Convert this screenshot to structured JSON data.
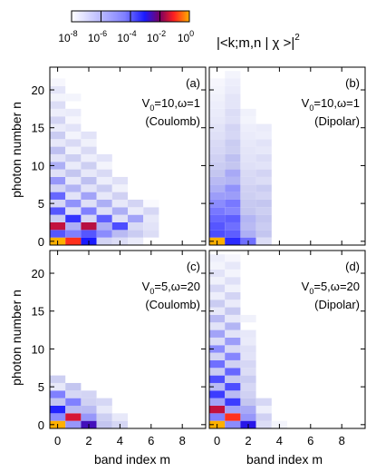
{
  "figure": {
    "colorbar": {
      "label": "|<k;m,n | χ >|",
      "label_sup": "2",
      "ticks": [
        {
          "base": "10",
          "exp": "-8"
        },
        {
          "base": "10",
          "exp": "-6"
        },
        {
          "base": "10",
          "exp": "-4"
        },
        {
          "base": "10",
          "exp": "-2"
        },
        {
          "base": "10",
          "exp": "0"
        }
      ],
      "log_range": [
        -8,
        0
      ],
      "colors": [
        "#ffffff",
        "#1a1aff",
        "#7a0060",
        "#ff2020",
        "#ffb000"
      ]
    },
    "xlabel": "band index m",
    "ylabel": "photon number n"
  },
  "chart_data": [
    {
      "type": "heatmap",
      "panel": "(a)",
      "param_base": "V",
      "param_sub": "0",
      "param_rest": "=10,ω=1",
      "potential": "(Coulomb)",
      "xlabel": "band index m",
      "ylabel": "photon number n",
      "xlim": [
        -0.5,
        9.5
      ],
      "ylim": [
        -0.5,
        23
      ],
      "xticks": [
        0,
        2,
        4,
        6,
        8
      ],
      "yticks": [
        0,
        5,
        10,
        15,
        20
      ],
      "value_scale": "log10",
      "cells": [
        [
          0,
          0,
          0.0
        ],
        [
          1,
          0,
          -0.8
        ],
        [
          2,
          0,
          -3.6
        ],
        [
          3,
          0,
          -6.5
        ],
        [
          4,
          0,
          -6.8
        ],
        [
          5,
          0,
          -7.3
        ],
        [
          0,
          1,
          -4.3
        ],
        [
          1,
          1,
          -4.8
        ],
        [
          2,
          1,
          -4.3
        ],
        [
          3,
          1,
          -5.0
        ],
        [
          4,
          1,
          -5.8
        ],
        [
          5,
          1,
          -6.2
        ],
        [
          6,
          1,
          -6.8
        ],
        [
          0,
          2,
          -1.5
        ],
        [
          1,
          2,
          -5.6
        ],
        [
          2,
          2,
          -1.6
        ],
        [
          3,
          2,
          -5.6
        ],
        [
          4,
          2,
          -4.2
        ],
        [
          5,
          2,
          -6.7
        ],
        [
          6,
          2,
          -7.0
        ],
        [
          0,
          3,
          -6.2
        ],
        [
          1,
          3,
          -3.9
        ],
        [
          2,
          3,
          -6.6
        ],
        [
          3,
          3,
          -4.4
        ],
        [
          4,
          3,
          -6.9
        ],
        [
          5,
          3,
          -5.4
        ],
        [
          6,
          3,
          -7.2
        ],
        [
          0,
          4,
          -4.3
        ],
        [
          1,
          4,
          -6.8
        ],
        [
          2,
          4,
          -4.8
        ],
        [
          3,
          4,
          -6.9
        ],
        [
          4,
          4,
          -5.6
        ],
        [
          5,
          4,
          -7.3
        ],
        [
          6,
          4,
          -6.6
        ],
        [
          0,
          5,
          -6.6
        ],
        [
          1,
          5,
          -5.1
        ],
        [
          2,
          5,
          -6.9
        ],
        [
          3,
          5,
          -5.6
        ],
        [
          4,
          5,
          -7.2
        ],
        [
          5,
          5,
          -6.5
        ],
        [
          6,
          5,
          -7.8
        ],
        [
          0,
          6,
          -4.5
        ],
        [
          1,
          6,
          -7.0
        ],
        [
          2,
          6,
          -5.4
        ],
        [
          3,
          6,
          -7.2
        ],
        [
          4,
          6,
          -6.4
        ],
        [
          0,
          7,
          -6.5
        ],
        [
          1,
          7,
          -5.7
        ],
        [
          2,
          7,
          -7.0
        ],
        [
          3,
          7,
          -6.2
        ],
        [
          4,
          7,
          -7.5
        ],
        [
          0,
          8,
          -5.2
        ],
        [
          1,
          8,
          -7.2
        ],
        [
          2,
          8,
          -5.9
        ],
        [
          3,
          8,
          -7.4
        ],
        [
          4,
          8,
          -6.9
        ],
        [
          0,
          9,
          -6.9
        ],
        [
          1,
          9,
          -6.0
        ],
        [
          2,
          9,
          -7.2
        ],
        [
          3,
          9,
          -6.7
        ],
        [
          0,
          10,
          -5.6
        ],
        [
          1,
          10,
          -7.3
        ],
        [
          2,
          10,
          -6.3
        ],
        [
          3,
          10,
          -7.6
        ],
        [
          0,
          11,
          -7.0
        ],
        [
          1,
          11,
          -6.3
        ],
        [
          2,
          11,
          -7.4
        ],
        [
          3,
          11,
          -7.0
        ],
        [
          0,
          12,
          -5.9
        ],
        [
          1,
          12,
          -7.5
        ],
        [
          2,
          12,
          -6.7
        ],
        [
          0,
          13,
          -7.2
        ],
        [
          1,
          13,
          -6.7
        ],
        [
          2,
          13,
          -7.5
        ],
        [
          0,
          14,
          -6.2
        ],
        [
          1,
          14,
          -7.6
        ],
        [
          2,
          14,
          -7.0
        ],
        [
          0,
          15,
          -7.3
        ],
        [
          1,
          15,
          -7.0
        ],
        [
          0,
          16,
          -6.5
        ],
        [
          1,
          16,
          -7.7
        ],
        [
          0,
          17,
          -7.4
        ],
        [
          1,
          17,
          -7.3
        ],
        [
          0,
          18,
          -6.8
        ],
        [
          0,
          19,
          -7.6
        ],
        [
          1,
          19,
          -7.6
        ],
        [
          0,
          20,
          -7.1
        ],
        [
          0,
          21,
          -7.7
        ]
      ]
    },
    {
      "type": "heatmap",
      "panel": "(b)",
      "param_base": "V",
      "param_sub": "0",
      "param_rest": "=10,ω=1",
      "potential": "(Dipolar)",
      "xlabel": "band index m",
      "ylabel": "photon number n",
      "xlim": [
        -0.5,
        9.5
      ],
      "ylim": [
        -0.5,
        23
      ],
      "xticks": [
        0,
        2,
        4,
        6,
        8
      ],
      "yticks": [
        0,
        5,
        10,
        15,
        20
      ],
      "value_scale": "log10",
      "cells": [
        [
          0,
          0,
          0.0
        ],
        [
          1,
          0,
          -3.8
        ],
        [
          2,
          0,
          -4.6
        ],
        [
          3,
          0,
          -6.8
        ],
        [
          0,
          1,
          -4.2
        ],
        [
          1,
          1,
          -4.4
        ],
        [
          2,
          1,
          -5.6
        ],
        [
          3,
          1,
          -6.0
        ],
        [
          0,
          2,
          -4.3
        ],
        [
          1,
          2,
          -4.6
        ],
        [
          2,
          2,
          -5.8
        ],
        [
          3,
          2,
          -6.2
        ],
        [
          0,
          3,
          -4.5
        ],
        [
          1,
          3,
          -4.4
        ],
        [
          2,
          3,
          -5.7
        ],
        [
          3,
          3,
          -6.0
        ],
        [
          0,
          4,
          -4.7
        ],
        [
          1,
          4,
          -4.9
        ],
        [
          2,
          4,
          -6.0
        ],
        [
          3,
          4,
          -6.3
        ],
        [
          0,
          5,
          -5.0
        ],
        [
          1,
          5,
          -4.7
        ],
        [
          2,
          5,
          -6.1
        ],
        [
          3,
          5,
          -6.0
        ],
        [
          0,
          6,
          -5.3
        ],
        [
          1,
          6,
          -5.3
        ],
        [
          2,
          6,
          -6.3
        ],
        [
          3,
          6,
          -6.5
        ],
        [
          0,
          7,
          -5.6
        ],
        [
          1,
          7,
          -5.1
        ],
        [
          2,
          7,
          -6.4
        ],
        [
          3,
          7,
          -6.2
        ],
        [
          0,
          8,
          -5.8
        ],
        [
          1,
          8,
          -5.7
        ],
        [
          2,
          8,
          -6.6
        ],
        [
          3,
          8,
          -6.8
        ],
        [
          0,
          9,
          -6.0
        ],
        [
          1,
          9,
          -5.5
        ],
        [
          2,
          9,
          -6.7
        ],
        [
          3,
          9,
          -6.5
        ],
        [
          0,
          10,
          -6.2
        ],
        [
          1,
          10,
          -6.0
        ],
        [
          2,
          10,
          -6.9
        ],
        [
          3,
          10,
          -7.0
        ],
        [
          0,
          11,
          -6.4
        ],
        [
          1,
          11,
          -5.9
        ],
        [
          2,
          11,
          -7.0
        ],
        [
          3,
          11,
          -6.8
        ],
        [
          0,
          12,
          -6.6
        ],
        [
          1,
          12,
          -6.3
        ],
        [
          2,
          12,
          -7.1
        ],
        [
          3,
          12,
          -7.2
        ],
        [
          0,
          13,
          -6.7
        ],
        [
          1,
          13,
          -6.2
        ],
        [
          2,
          13,
          -7.2
        ],
        [
          3,
          13,
          -7.0
        ],
        [
          0,
          14,
          -6.9
        ],
        [
          1,
          14,
          -6.6
        ],
        [
          2,
          14,
          -7.3
        ],
        [
          3,
          14,
          -7.4
        ],
        [
          0,
          15,
          -7.0
        ],
        [
          1,
          15,
          -6.5
        ],
        [
          2,
          15,
          -7.4
        ],
        [
          3,
          15,
          -7.3
        ],
        [
          0,
          16,
          -7.2
        ],
        [
          1,
          16,
          -6.9
        ],
        [
          2,
          16,
          -7.6
        ],
        [
          0,
          17,
          -7.3
        ],
        [
          1,
          17,
          -6.8
        ],
        [
          2,
          17,
          -7.5
        ],
        [
          0,
          18,
          -7.4
        ],
        [
          1,
          18,
          -7.1
        ],
        [
          0,
          19,
          -7.5
        ],
        [
          1,
          19,
          -7.1
        ],
        [
          0,
          20,
          -7.6
        ],
        [
          1,
          20,
          -7.3
        ],
        [
          0,
          21,
          -7.7
        ],
        [
          1,
          21,
          -7.4
        ],
        [
          1,
          22,
          -7.6
        ]
      ]
    },
    {
      "type": "heatmap",
      "panel": "(c)",
      "param_base": "V",
      "param_sub": "0",
      "param_rest": "=5,ω=20",
      "potential": "(Coulomb)",
      "xlabel": "band index m",
      "ylabel": "photon number n",
      "xlim": [
        -0.5,
        9.5
      ],
      "ylim": [
        -0.5,
        23
      ],
      "xticks": [
        0,
        2,
        4,
        6,
        8
      ],
      "yticks": [
        0,
        5,
        10,
        15,
        20
      ],
      "value_scale": "log10",
      "cells": [
        [
          0,
          0,
          0.0
        ],
        [
          1,
          0,
          -5.2
        ],
        [
          2,
          0,
          -3.0
        ],
        [
          3,
          0,
          -6.0
        ],
        [
          4,
          0,
          -6.6
        ],
        [
          0,
          1,
          -5.0
        ],
        [
          1,
          1,
          -1.3
        ],
        [
          2,
          1,
          -5.2
        ],
        [
          3,
          1,
          -6.3
        ],
        [
          4,
          1,
          -7.2
        ],
        [
          0,
          2,
          -3.7
        ],
        [
          1,
          2,
          -5.8
        ],
        [
          2,
          2,
          -5.8
        ],
        [
          3,
          2,
          -7.2
        ],
        [
          0,
          3,
          -6.0
        ],
        [
          1,
          3,
          -4.8
        ],
        [
          2,
          3,
          -6.4
        ],
        [
          3,
          3,
          -6.6
        ],
        [
          0,
          4,
          -4.8
        ],
        [
          1,
          4,
          -6.6
        ],
        [
          2,
          4,
          -6.5
        ],
        [
          0,
          5,
          -7.2
        ],
        [
          1,
          5,
          -6.0
        ],
        [
          0,
          6,
          -6.3
        ]
      ]
    },
    {
      "type": "heatmap",
      "panel": "(d)",
      "param_base": "V",
      "param_sub": "0",
      "param_rest": "=5,ω=20",
      "potential": "(Dipolar)",
      "xlabel": "band index m",
      "ylabel": "photon number n",
      "xlim": [
        -0.5,
        9.5
      ],
      "ylim": [
        -0.5,
        23
      ],
      "xticks": [
        0,
        2,
        4,
        6,
        8
      ],
      "yticks": [
        0,
        5,
        10,
        15,
        20
      ],
      "value_scale": "log10",
      "cells": [
        [
          0,
          0,
          0.0
        ],
        [
          1,
          0,
          -5.0
        ],
        [
          2,
          0,
          -3.4
        ],
        [
          3,
          0,
          -6.8
        ],
        [
          4,
          0,
          -7.6
        ],
        [
          0,
          1,
          -4.8
        ],
        [
          1,
          1,
          -0.8
        ],
        [
          2,
          1,
          -5.2
        ],
        [
          3,
          1,
          -6.4
        ],
        [
          0,
          2,
          -1.5
        ],
        [
          1,
          2,
          -5.4
        ],
        [
          2,
          2,
          -5.5
        ],
        [
          3,
          2,
          -7.4
        ],
        [
          0,
          3,
          -5.4
        ],
        [
          1,
          3,
          -4.0
        ],
        [
          2,
          3,
          -6.0
        ],
        [
          3,
          3,
          -6.6
        ],
        [
          0,
          4,
          -4.0
        ],
        [
          1,
          4,
          -5.8
        ],
        [
          2,
          4,
          -6.4
        ],
        [
          0,
          5,
          -5.8
        ],
        [
          1,
          5,
          -4.2
        ],
        [
          2,
          5,
          -6.6
        ],
        [
          0,
          6,
          -4.2
        ],
        [
          1,
          6,
          -6.1
        ],
        [
          2,
          6,
          -6.2
        ],
        [
          0,
          7,
          -6.2
        ],
        [
          1,
          7,
          -4.5
        ],
        [
          2,
          7,
          -6.8
        ],
        [
          0,
          8,
          -4.6
        ],
        [
          1,
          8,
          -6.4
        ],
        [
          2,
          8,
          -6.6
        ],
        [
          0,
          9,
          -6.5
        ],
        [
          1,
          9,
          -4.9
        ],
        [
          2,
          9,
          -7.0
        ],
        [
          0,
          10,
          -5.0
        ],
        [
          1,
          10,
          -6.7
        ],
        [
          2,
          10,
          -6.9
        ],
        [
          0,
          11,
          -6.8
        ],
        [
          1,
          11,
          -5.3
        ],
        [
          2,
          11,
          -7.3
        ],
        [
          0,
          12,
          -5.4
        ],
        [
          1,
          12,
          -7.0
        ],
        [
          2,
          12,
          -7.2
        ],
        [
          0,
          13,
          -7.0
        ],
        [
          1,
          13,
          -5.7
        ],
        [
          0,
          14,
          -5.8
        ],
        [
          1,
          14,
          -7.2
        ],
        [
          2,
          14,
          -7.5
        ],
        [
          0,
          15,
          -7.2
        ],
        [
          1,
          15,
          -6.1
        ],
        [
          0,
          16,
          -6.2
        ],
        [
          1,
          16,
          -7.3
        ],
        [
          0,
          17,
          -7.4
        ],
        [
          1,
          17,
          -6.5
        ],
        [
          0,
          18,
          -6.6
        ],
        [
          1,
          18,
          -7.5
        ],
        [
          0,
          19,
          -7.5
        ],
        [
          1,
          19,
          -6.9
        ],
        [
          0,
          20,
          -7.0
        ],
        [
          1,
          20,
          -7.6
        ],
        [
          0,
          21,
          -7.6
        ],
        [
          1,
          21,
          -7.2
        ],
        [
          0,
          22,
          -7.4
        ],
        [
          1,
          22,
          -7.7
        ]
      ]
    }
  ]
}
